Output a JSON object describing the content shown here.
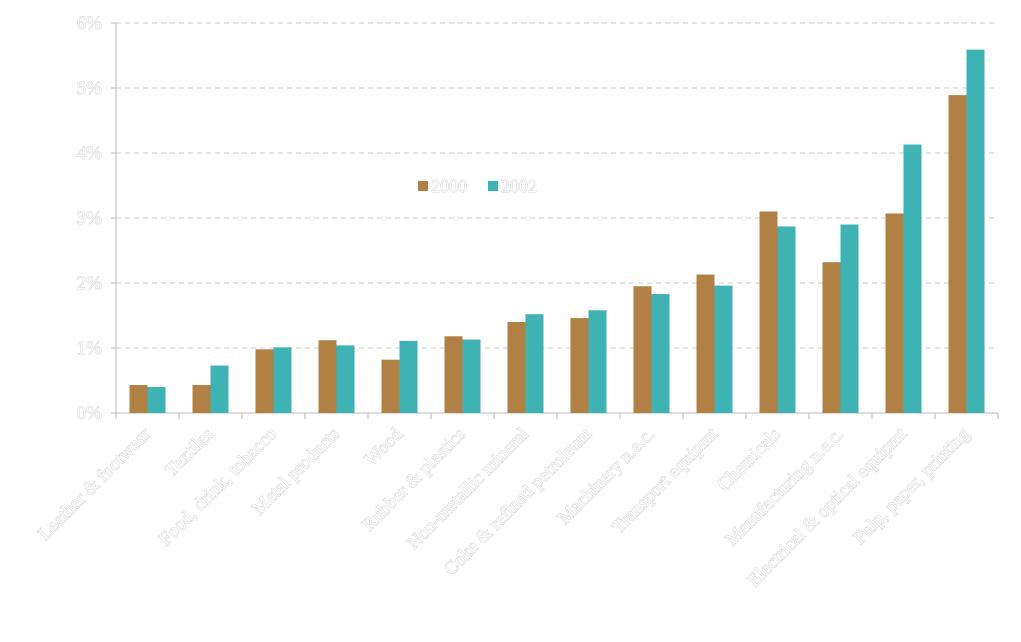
{
  "chart_data": {
    "type": "bar",
    "title": "",
    "xlabel": "",
    "ylabel": "",
    "categories": [
      "Leather & footwear",
      "Textiles",
      "Food, drink, tobacco",
      "Metal products",
      "Wood",
      "Rubber & plastics",
      "Non-metallic mineral",
      "Coke & refined petroleum",
      "Machinery n.e.c.",
      "Transport equipmt",
      "Chemicals",
      "Manufacturing n.e.c.",
      "Electrical & optical equipmt",
      "Pulp, paper, printing"
    ],
    "series": [
      {
        "name": "2000",
        "color": "#b08045",
        "values": [
          0.43,
          0.43,
          0.98,
          1.12,
          0.82,
          1.18,
          1.4,
          1.46,
          1.95,
          2.13,
          3.1,
          2.32,
          3.07,
          4.89
        ]
      },
      {
        "name": "2002",
        "color": "#3fb3b3",
        "values": [
          0.4,
          0.73,
          1.01,
          1.04,
          1.11,
          1.13,
          1.52,
          1.58,
          1.83,
          1.96,
          2.87,
          2.9,
          4.13,
          5.59
        ]
      }
    ],
    "ylim": [
      0,
      6
    ],
    "yticks": [
      "0%",
      "1%",
      "2%",
      "3%",
      "4%",
      "5%",
      "6%"
    ],
    "grid": true,
    "grid_style": "dashed",
    "legend_position": "center"
  }
}
